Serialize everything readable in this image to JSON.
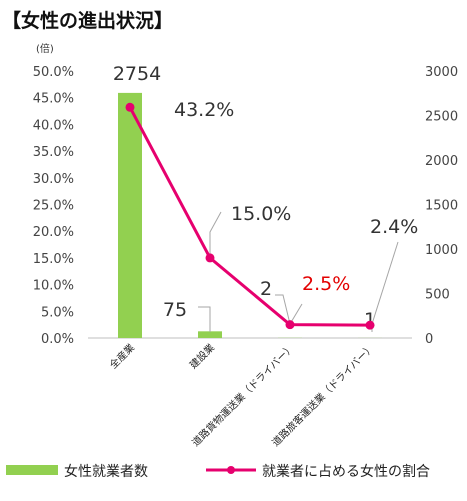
{
  "chart_data": {
    "type": "bar+line",
    "title": "【女性の進出状況】",
    "left_axis": {
      "unit": "(倍)",
      "ticks": [
        "50.0%",
        "45.0%",
        "40.0%",
        "35.0%",
        "30.0%",
        "25.0%",
        "20.0%",
        "15.0%",
        "10.0%",
        "5.0%",
        "0.0%"
      ],
      "range": [
        0,
        50
      ]
    },
    "right_axis": {
      "ticks": [
        "3000",
        "2500",
        "2000",
        "1500",
        "1000",
        "500",
        "0"
      ],
      "range": [
        0,
        3000
      ]
    },
    "categories": [
      "全産業",
      "建設業",
      "道路貨物運送業（ドライバー）",
      "道路旅客運送業（ドライバー）"
    ],
    "bar_series": {
      "name": "女性就業者数",
      "color": "#92d050",
      "values": [
        2754,
        75,
        2,
        1
      ],
      "labels": [
        "2754",
        "75",
        "2",
        "1"
      ]
    },
    "line_series": {
      "name": "就業者に占める女性の割合",
      "color": "#e6006e",
      "values": [
        43.2,
        15.0,
        2.5,
        2.4
      ],
      "labels": [
        "43.2%",
        "15.0%",
        "2.5%",
        "2.4%"
      ],
      "highlight_color": "#e30000"
    },
    "grid": false,
    "legend_position": "bottom"
  }
}
